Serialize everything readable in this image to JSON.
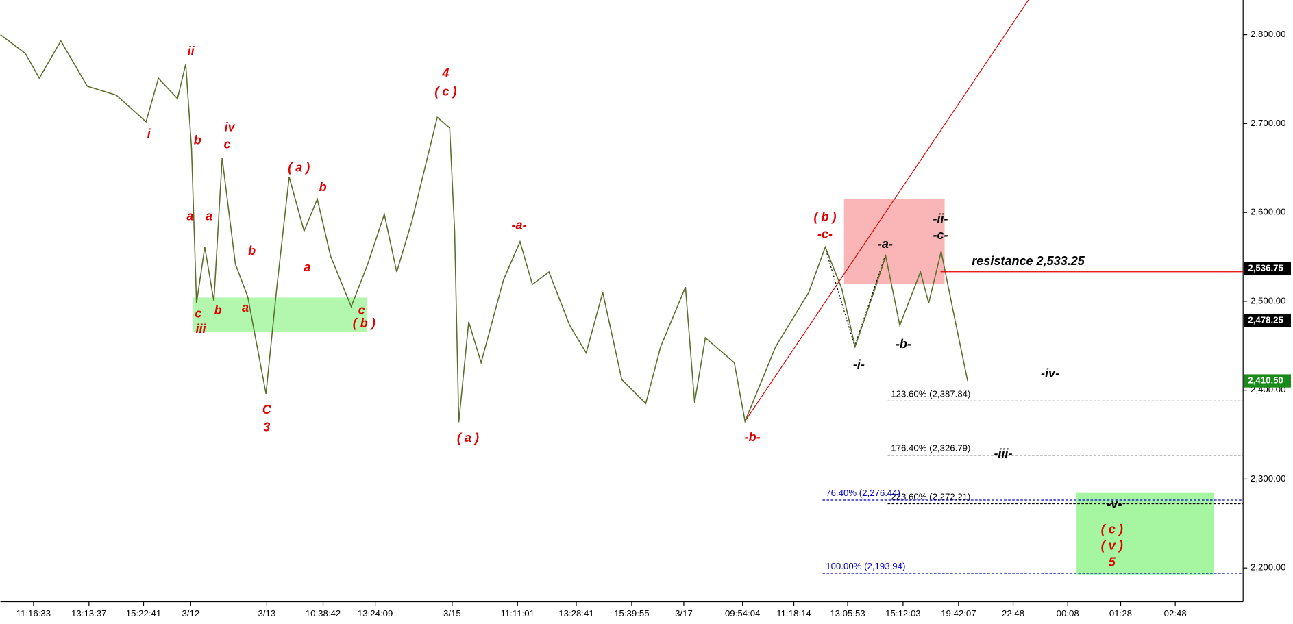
{
  "chart_data": {
    "type": "line",
    "xlim": [
      0,
      150
    ],
    "ylim": [
      2162,
      2839
    ],
    "yticks": [
      {
        "value": 2200,
        "label": "2,200.00"
      },
      {
        "value": 2300,
        "label": "2,300.00"
      },
      {
        "value": 2400,
        "label": "2,400.00"
      },
      {
        "value": 2500,
        "label": "2,500.00"
      },
      {
        "value": 2600,
        "label": "2,600.00"
      },
      {
        "value": 2700,
        "label": "2,700.00"
      },
      {
        "value": 2800,
        "label": "2,800.00"
      }
    ],
    "xticks": [
      {
        "value": 4,
        "label": "11:16:33"
      },
      {
        "value": 10.7,
        "label": "13:13:37"
      },
      {
        "value": 17.3,
        "label": "15:22:41"
      },
      {
        "value": 23,
        "label": "3/12"
      },
      {
        "value": 32.2,
        "label": "3/13"
      },
      {
        "value": 39,
        "label": "10:38:42"
      },
      {
        "value": 45.3,
        "label": "13:24:09"
      },
      {
        "value": 54.6,
        "label": "3/15"
      },
      {
        "value": 62.5,
        "label": "11:11:01"
      },
      {
        "value": 69.6,
        "label": "13:28:41"
      },
      {
        "value": 76.3,
        "label": "15:39:55"
      },
      {
        "value": 82.6,
        "label": "3/17"
      },
      {
        "value": 89.7,
        "label": "09:54:04"
      },
      {
        "value": 95.9,
        "label": "11:18:14"
      },
      {
        "value": 102.4,
        "label": "13:05:53"
      },
      {
        "value": 109.1,
        "label": "15:12:03"
      },
      {
        "value": 115.8,
        "label": "19:42:07"
      },
      {
        "value": 122.4,
        "label": "22:48"
      },
      {
        "value": 129,
        "label": "00:08"
      },
      {
        "value": 135.4,
        "label": "01:28"
      },
      {
        "value": 142,
        "label": "02:48"
      }
    ],
    "series": [
      {
        "color": "#5a6e2a",
        "x": [
          0,
          3,
          4.7,
          7.3,
          10.5,
          14,
          17.6,
          19.1,
          21.4,
          22.4,
          23.1,
          23.7,
          24.7,
          25.8,
          26.8,
          28.4,
          29.9,
          32.1,
          33.4,
          34.9,
          36.7,
          38.3,
          39.9,
          42.4,
          44.4,
          46.4,
          47.9,
          49.7,
          52.8,
          54.3,
          54.9,
          55.4,
          56.6,
          58.1,
          60.8,
          62.8,
          64.3,
          66.3,
          68.8,
          70.8,
          72.8,
          75.1,
          78,
          79.8,
          82.8,
          83.9,
          85.2,
          88.7,
          90,
          93.7,
          97.7,
          99.7,
          101.7,
          103.3,
          105.7,
          107,
          108.7,
          111.2,
          112.2,
          113.7,
          115.2,
          116.9
        ],
        "values": [
          2800,
          2779,
          2751,
          2793,
          2742,
          2732,
          2702,
          2751,
          2728,
          2767,
          2672,
          2498,
          2561,
          2500,
          2661,
          2542,
          2505,
          2396,
          2515,
          2640,
          2579,
          2615,
          2551,
          2494,
          2542,
          2598,
          2533,
          2589,
          2707,
          2695,
          2579,
          2364,
          2477,
          2431,
          2524,
          2567,
          2519,
          2533,
          2473,
          2442,
          2510,
          2412,
          2385,
          2449,
          2516,
          2386,
          2459,
          2431,
          2365,
          2449,
          2510,
          2561,
          2514,
          2449,
          2514,
          2551,
          2473,
          2533,
          2498,
          2556,
          2487,
          2410.5
        ]
      }
    ],
    "price_tags": [
      {
        "value": 2536.75,
        "label": "2,536.75",
        "color": "#000000"
      },
      {
        "value": 2478.25,
        "label": "2,478.25",
        "color": "#000000"
      },
      {
        "value": 2410.5,
        "label": "2,410.50",
        "color": "#1a8a1a"
      }
    ],
    "levels": [
      {
        "value": 2387.84,
        "label": "123.60% (2,387.84)",
        "color": "#000000"
      },
      {
        "value": 2326.79,
        "label": "176.40% (2,326.79)",
        "color": "#000000"
      },
      {
        "value": 2272.21,
        "label": "223.60% (2,272.21)",
        "color": "#000000"
      },
      {
        "value": 2276.44,
        "label": "76.40% (2,276.44)",
        "color": "#0000cc"
      },
      {
        "value": 2193.94,
        "label": "100.00% (2,193.94)",
        "color": "#0000cc"
      }
    ],
    "resistance": {
      "value": 2533.25,
      "label": "resistance 2,533.25",
      "color": "#e00000"
    },
    "annotations": [
      {
        "text": "ii",
        "color": "#e00000"
      },
      {
        "text": "i",
        "color": "#e00000"
      },
      {
        "text": "b",
        "color": "#e00000"
      },
      {
        "text": "iv",
        "color": "#e00000"
      },
      {
        "text": "c",
        "color": "#e00000"
      },
      {
        "text": "a",
        "color": "#e00000"
      },
      {
        "text": "a",
        "color": "#e00000"
      },
      {
        "text": "c",
        "color": "#e00000"
      },
      {
        "text": "iii",
        "color": "#e00000"
      },
      {
        "text": "b",
        "color": "#e00000"
      },
      {
        "text": "a",
        "color": "#e00000"
      },
      {
        "text": "b",
        "color": "#e00000"
      },
      {
        "text": "( a )",
        "color": "#e00000"
      },
      {
        "text": "b",
        "color": "#e00000"
      },
      {
        "text": "a",
        "color": "#e00000"
      },
      {
        "text": "c",
        "color": "#e00000"
      },
      {
        "text": "( b )",
        "color": "#e00000"
      },
      {
        "text": "C",
        "color": "#e00000"
      },
      {
        "text": "3",
        "color": "#e00000"
      },
      {
        "text": "4",
        "color": "#e00000"
      },
      {
        "text": "( c )",
        "color": "#e00000"
      },
      {
        "text": "( a )",
        "color": "#e00000"
      },
      {
        "text": "-a-",
        "color": "#e00000"
      },
      {
        "text": "-b-",
        "color": "#e00000"
      },
      {
        "text": "( b )",
        "color": "#e00000"
      },
      {
        "text": "-c-",
        "color": "#e00000"
      },
      {
        "text": "-a-",
        "color": "#000000"
      },
      {
        "text": "-b-",
        "color": "#000000"
      },
      {
        "text": "-i-",
        "color": "#000000"
      },
      {
        "text": "-ii-",
        "color": "#000000"
      },
      {
        "text": "-c-",
        "color": "#000000"
      },
      {
        "text": "-iv-",
        "color": "#000000"
      },
      {
        "text": "-iii-",
        "color": "#000000"
      },
      {
        "text": "-v-",
        "color": "#000000"
      },
      {
        "text": "( c )",
        "color": "#e00000"
      },
      {
        "text": "( v )",
        "color": "#e00000"
      },
      {
        "text": "5",
        "color": "#e00000"
      }
    ]
  }
}
